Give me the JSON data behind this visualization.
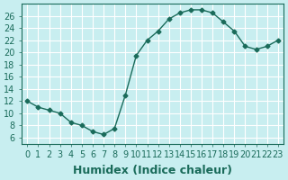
{
  "x": [
    0,
    1,
    2,
    3,
    4,
    5,
    6,
    7,
    8,
    9,
    10,
    11,
    12,
    13,
    14,
    15,
    16,
    17,
    18,
    19,
    20,
    21,
    22,
    23
  ],
  "y": [
    12,
    11,
    10.5,
    10,
    8.5,
    8,
    7,
    6.5,
    7.5,
    13,
    19.5,
    22,
    23.5,
    25.5,
    26.5,
    27,
    27,
    26.5,
    25,
    23.5,
    21,
    20.5,
    21,
    22
  ],
  "line_color": "#1a6b5a",
  "marker": "D",
  "marker_size": 2.5,
  "bg_color": "#c8eef0",
  "grid_color": "#ffffff",
  "xlabel": "Humidex (Indice chaleur)",
  "xlabel_fontsize": 9,
  "tick_fontsize": 7,
  "ylim": [
    5,
    28
  ],
  "yticks": [
    6,
    8,
    10,
    12,
    14,
    16,
    18,
    20,
    22,
    24,
    26
  ],
  "xticks": [
    0,
    1,
    2,
    3,
    4,
    5,
    6,
    7,
    8,
    9,
    10,
    11,
    12,
    13,
    14,
    15,
    16,
    17,
    18,
    19,
    20,
    21,
    22,
    23
  ]
}
